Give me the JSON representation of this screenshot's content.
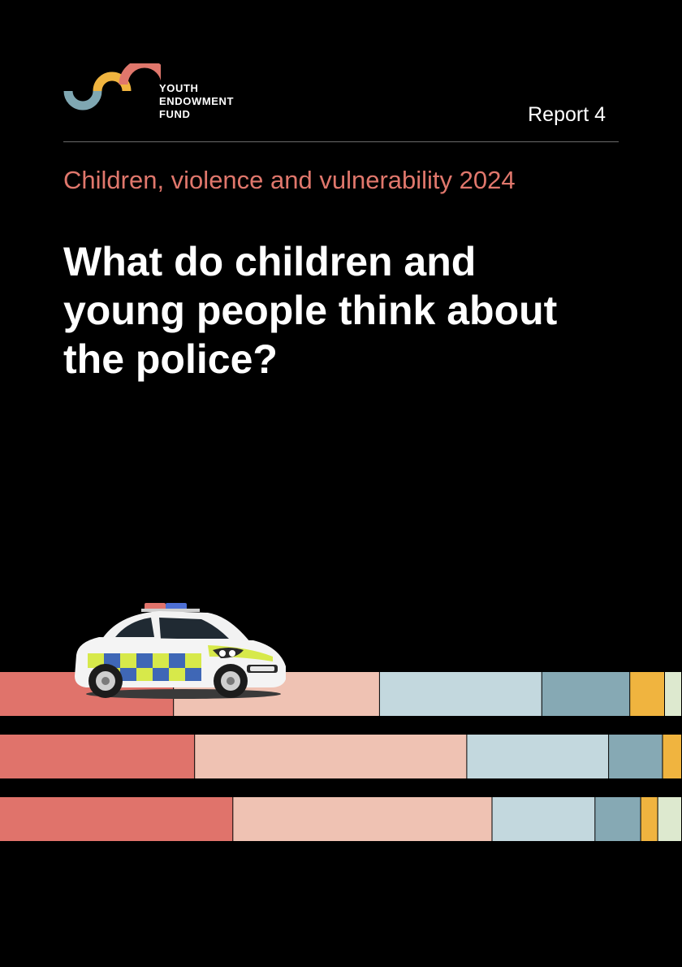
{
  "brand": {
    "logo_lines": [
      "YOUTH",
      "ENDOWMENT",
      "FUND"
    ],
    "colors": {
      "teal": "#7fa7b2",
      "yellow": "#f0b43f",
      "coral": "#e0776c"
    }
  },
  "header": {
    "report_label": "Report 4"
  },
  "cover": {
    "series_title": "Children, violence and vulnerability 2024",
    "title": "What do children and young people think about the police?"
  },
  "decoration": {
    "bar_colors": [
      "#e0736b",
      "#efc2b3",
      "#c3d8de",
      "#86a9b4",
      "#f0b43f",
      "#dde9cf"
    ],
    "stacked_bars": [
      [
        0.255,
        0.302,
        0.238,
        0.129,
        0.051,
        0.025
      ],
      [
        0.286,
        0.399,
        0.208,
        0.079,
        0.028,
        0.0
      ],
      [
        0.342,
        0.38,
        0.151,
        0.067,
        0.025,
        0.035
      ]
    ]
  },
  "illustration": {
    "icon": "police-car-icon"
  }
}
